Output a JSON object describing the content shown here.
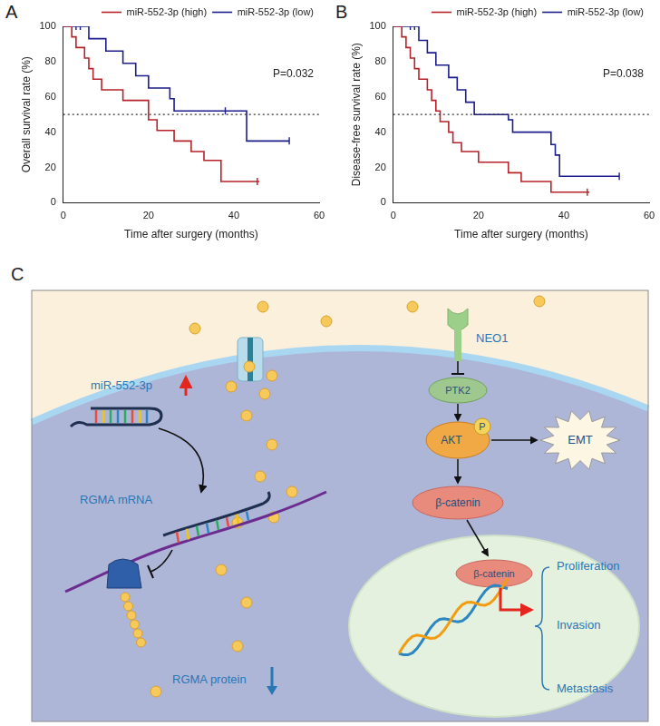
{
  "chart_data": [
    {
      "type": "line",
      "panel": "A",
      "y_label": "Overall survival rate (%)",
      "x_label": "Time after surgery (months)",
      "xlim": [
        0,
        60
      ],
      "xticks": [
        0,
        20,
        40,
        60
      ],
      "ylim": [
        0,
        100
      ],
      "yticks": [
        0,
        20,
        40,
        60,
        80,
        100
      ],
      "grid": false,
      "legend": "upper right",
      "annotation": "P=0.032",
      "reference_line": {
        "value": 50,
        "line_style": "dotted"
      },
      "series": [
        {
          "name": "miR-552-3p (high)",
          "color": "#b5222a",
          "line_style": "steps",
          "x": [
            0,
            2,
            3,
            5,
            6,
            7,
            9,
            14,
            20,
            22,
            26,
            30,
            33,
            37,
            46
          ],
          "values": [
            100,
            94,
            88,
            82,
            76,
            70,
            64,
            58,
            47,
            41,
            35,
            29,
            24,
            12,
            12
          ],
          "censored": {
            "marker": "tick",
            "x": [
              45.5
            ],
            "values": [
              12
            ]
          }
        },
        {
          "name": "miR-552-3p (low)",
          "color": "#1c1c8a",
          "line_style": "steps",
          "x": [
            0,
            6,
            10,
            14,
            17,
            20,
            25,
            26,
            43,
            53
          ],
          "values": [
            100,
            93,
            86,
            79,
            72,
            65,
            59,
            52,
            35,
            35
          ],
          "censored": {
            "marker": "tick",
            "x": [
              3,
              4,
              38,
              53
            ],
            "values": [
              100,
              100,
              52,
              35
            ]
          }
        }
      ]
    },
    {
      "type": "line",
      "panel": "B",
      "y_label": "Disease-free survival rate (%)",
      "x_label": "Time after surgery (months)",
      "xlim": [
        0,
        60
      ],
      "xticks": [
        0,
        20,
        40,
        60
      ],
      "ylim": [
        0,
        100
      ],
      "yticks": [
        0,
        20,
        40,
        60,
        80,
        100
      ],
      "grid": false,
      "legend": "upper right",
      "annotation": "P=0.038",
      "reference_line": {
        "value": 50,
        "line_style": "dotted"
      },
      "series": [
        {
          "name": "miR-552-3p (high)",
          "color": "#b5222a",
          "line_style": "steps",
          "x": [
            0,
            2,
            3,
            4,
            5,
            6,
            8,
            9,
            10,
            11,
            13,
            14,
            16,
            20,
            27,
            30,
            37,
            46
          ],
          "values": [
            100,
            94,
            88,
            82,
            76,
            70,
            64,
            58,
            52,
            46,
            40,
            34,
            29,
            23,
            17,
            12,
            6,
            6
          ],
          "censored": {
            "marker": "tick",
            "x": [
              45.5
            ],
            "values": [
              6
            ]
          }
        },
        {
          "name": "miR-552-3p (low)",
          "color": "#1c1c8a",
          "line_style": "steps",
          "x": [
            0,
            6,
            8,
            10,
            13,
            15,
            17,
            19,
            27,
            28,
            37,
            38,
            39,
            53
          ],
          "values": [
            100,
            92,
            85,
            78,
            71,
            64,
            57,
            50,
            47,
            40,
            33,
            27,
            15,
            15
          ],
          "censored": {
            "marker": "tick",
            "x": [
              4,
              5,
              53
            ],
            "values": [
              100,
              100,
              15
            ]
          }
        }
      ]
    }
  ],
  "diagram": {
    "panel": "C",
    "mirna": "miR-552-3p",
    "mrna": "RGMA mRNA",
    "protein": "RGMA protein",
    "receptor": "NEO1",
    "kinase": "PTK2",
    "akt": "AKT",
    "phospho": "P",
    "emt": "EMT",
    "beta_catenin": "β-catenin",
    "outcomes": [
      "Proliferation",
      "Invasion",
      "Metastasis"
    ]
  }
}
